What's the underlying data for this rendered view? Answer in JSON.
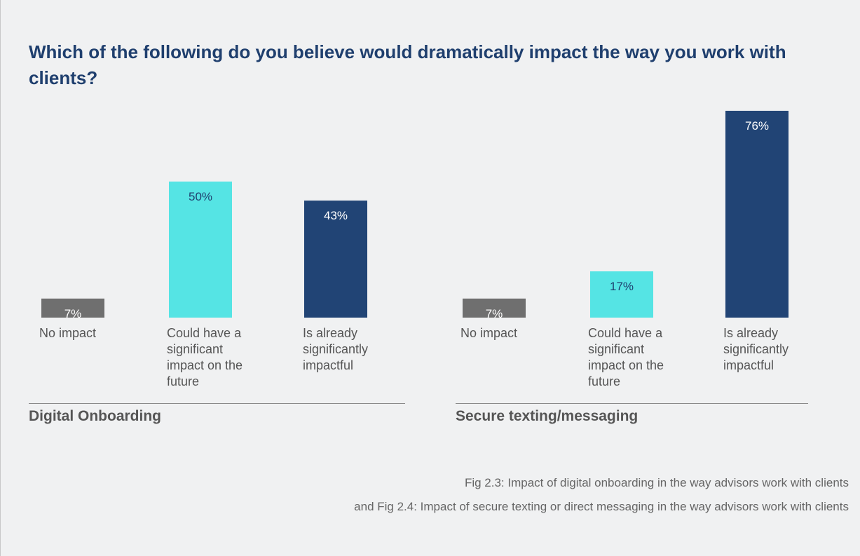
{
  "title": "Which of the following do you believe would dramatically impact the way you work with clients?",
  "colors": {
    "no_impact": "#6f6f6f",
    "could_have": "#55e4e4",
    "already": "#214475",
    "value_dark_text": "#1f3f6e",
    "value_light_text": "#ffffff"
  },
  "chart_data": [
    {
      "type": "bar",
      "title": "Digital Onboarding",
      "categories": [
        "No impact",
        "Could have a significant impact on the future",
        "Is already significantly impactful"
      ],
      "values": [
        7,
        50,
        43
      ],
      "value_labels": [
        "7%",
        "50%",
        "43%"
      ],
      "ylim": [
        0,
        76
      ],
      "xlabel": "",
      "ylabel": ""
    },
    {
      "type": "bar",
      "title": "Secure texting/messaging",
      "categories": [
        "No impact",
        "Could have a significant impact on the future",
        "Is already significantly impactful"
      ],
      "values": [
        7,
        17,
        76
      ],
      "value_labels": [
        "7%",
        "17%",
        "76%"
      ],
      "ylim": [
        0,
        76
      ],
      "xlabel": "",
      "ylabel": ""
    }
  ],
  "labels": {
    "g1": [
      "No impact",
      "Could have a significant impact on the future",
      "Is already significantly impactful"
    ],
    "g2": [
      "No impact",
      "Could have a significant impact on the future",
      "Is already significantly impactful"
    ]
  },
  "caption": {
    "line1": "Fig 2.3: Impact of digital onboarding in the way advisors work with clients",
    "line2": "and Fig 2.4: Impact of secure texting or direct messaging in the way advisors work with clients"
  }
}
